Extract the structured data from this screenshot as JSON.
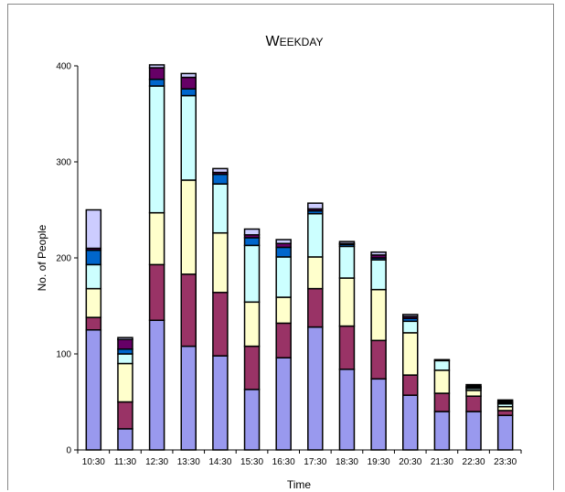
{
  "chart_data": {
    "type": "bar",
    "stacked": true,
    "title": "Weekday",
    "xlabel": "Time",
    "ylabel": "No. of People",
    "ylim": [
      0,
      400
    ],
    "yticks": [
      0,
      100,
      200,
      300,
      400
    ],
    "grid": false,
    "legend": "none",
    "categories": [
      "10:30",
      "11:30",
      "12:30",
      "13:30",
      "14:30",
      "15:30",
      "16:30",
      "17:30",
      "18:30",
      "19:30",
      "20:30",
      "21:30",
      "22:30",
      "23:30"
    ],
    "series": [
      {
        "color": "#9999ee",
        "values": [
          125,
          22,
          135,
          108,
          98,
          63,
          96,
          128,
          84,
          74,
          57,
          40,
          40,
          36
        ]
      },
      {
        "color": "#993366",
        "values": [
          13,
          28,
          58,
          75,
          66,
          45,
          36,
          40,
          45,
          40,
          21,
          19,
          16,
          5
        ]
      },
      {
        "color": "#ffffcc",
        "values": [
          30,
          40,
          54,
          98,
          62,
          46,
          27,
          33,
          50,
          53,
          44,
          24,
          6,
          4
        ]
      },
      {
        "color": "#ccffff",
        "values": [
          25,
          10,
          132,
          88,
          51,
          59,
          42,
          45,
          33,
          31,
          12,
          10,
          2,
          3
        ]
      },
      {
        "color": "#0066cc",
        "values": [
          15,
          5,
          7,
          7,
          10,
          8,
          10,
          3,
          2,
          2,
          3,
          1,
          0,
          0
        ]
      },
      {
        "color": "#660066",
        "values": [
          2,
          10,
          12,
          12,
          2,
          3,
          4,
          2,
          1,
          3,
          2,
          0,
          1,
          1
        ]
      },
      {
        "color": "#ccccff",
        "values": [
          40,
          2,
          3,
          4,
          4,
          6,
          4,
          6,
          2,
          3,
          2,
          0,
          1,
          1
        ]
      },
      {
        "color": "#000000",
        "values": [
          0,
          0,
          0,
          0,
          0,
          0,
          0,
          0,
          0,
          0,
          0,
          0,
          2,
          2
        ]
      }
    ]
  }
}
